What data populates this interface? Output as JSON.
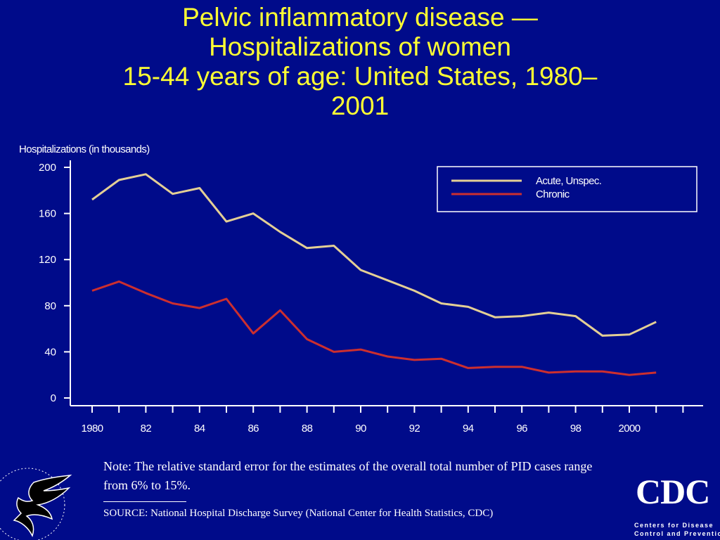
{
  "title": {
    "line1": "Pelvic inflammatory disease —",
    "line2": "Hospitalizations of women",
    "line3": "15-44 years of age: United States, 1980–",
    "line4": "2001"
  },
  "chart_data": {
    "type": "line",
    "ylabel": "Hospitalizations (in thousands)",
    "xlabel": "",
    "ylim": [
      0,
      200
    ],
    "yticks": [
      0,
      40,
      80,
      120,
      160,
      200
    ],
    "xlim": [
      1980,
      2002
    ],
    "xtick_labels": [
      {
        "x": 1980,
        "label": "1980"
      },
      {
        "x": 1982,
        "label": "82"
      },
      {
        "x": 1984,
        "label": "84"
      },
      {
        "x": 1986,
        "label": "86"
      },
      {
        "x": 1988,
        "label": "88"
      },
      {
        "x": 1990,
        "label": "90"
      },
      {
        "x": 1992,
        "label": "92"
      },
      {
        "x": 1994,
        "label": "94"
      },
      {
        "x": 1996,
        "label": "96"
      },
      {
        "x": 1998,
        "label": "98"
      },
      {
        "x": 2000,
        "label": "2000"
      }
    ],
    "x": [
      1980,
      1981,
      1982,
      1983,
      1984,
      1985,
      1986,
      1987,
      1988,
      1989,
      1990,
      1991,
      1992,
      1993,
      1994,
      1995,
      1996,
      1997,
      1998,
      1999,
      2000,
      2001
    ],
    "series": [
      {
        "name": "Acute, Unspec.",
        "color": "#e3cf95",
        "values": [
          172,
          189,
          194,
          177,
          182,
          153,
          160,
          144,
          130,
          132,
          111,
          102,
          93,
          82,
          79,
          70,
          71,
          74,
          71,
          54,
          55,
          66
        ]
      },
      {
        "name": "Chronic",
        "color": "#cc2f2f",
        "values": [
          93,
          101,
          91,
          82,
          78,
          86,
          56,
          76,
          51,
          40,
          42,
          36,
          33,
          34,
          26,
          27,
          27,
          22,
          23,
          23,
          20,
          22
        ]
      }
    ],
    "legend_position": "top-right",
    "grid": false
  },
  "note": "Note: The relative standard error for the estimates of the overall total number of PID cases range from 6% to 15%.",
  "source": "SOURCE: National Hospital Discharge Survey (National Center for Health Statistics, CDC)",
  "cdc_logo": {
    "text": "CDC",
    "sub1": "Centers for Disease",
    "sub2": "Control and Prevention"
  }
}
